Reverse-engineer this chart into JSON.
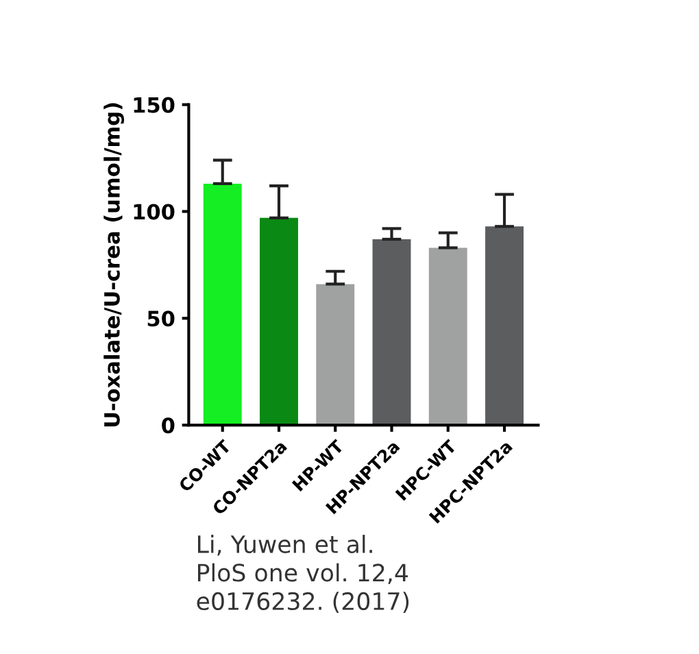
{
  "chart_data": {
    "type": "bar",
    "categories": [
      "CO-WT",
      "CO-NPT2a",
      "HP-WT",
      "HP-NPT2a",
      "HPC-WT",
      "HPC-NPT2a"
    ],
    "values": [
      113,
      97,
      66,
      87,
      83,
      93
    ],
    "errors": [
      [
        113,
        124
      ],
      [
        97,
        112
      ],
      [
        66,
        72
      ],
      [
        87,
        92
      ],
      [
        83,
        90
      ],
      [
        93,
        108
      ]
    ],
    "colors": [
      "#14ee22",
      "#0a8a14",
      "#a0a2a2",
      "#5c5d5e",
      "#a0a2a2",
      "#5c5d5e"
    ],
    "ylabel": "U-oxalate/U-crea (umol/mg)",
    "ylim": [
      0,
      150
    ],
    "yticks": [
      0,
      50,
      100,
      150
    ],
    "grid": false,
    "annotations": [
      "Li, Yuwen et al.\nPloS one vol. 12,4\ne0176232. (2017)"
    ]
  }
}
